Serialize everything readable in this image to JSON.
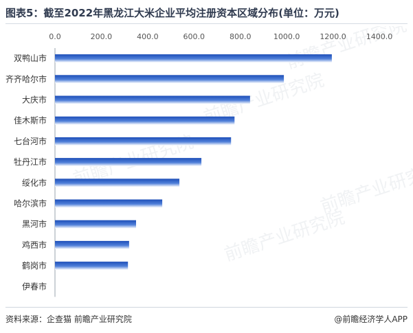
{
  "title": "图表5：截至2022年黑龙江大米企业平均注册资本区域分布(单位：万元)",
  "source": "资料来源：企查猫 前瞻产业研究院",
  "brand": "@前瞻经济学人APP",
  "watermark": "前瞻产业研究院",
  "colors": {
    "bar_dark": "#2a5bc4",
    "bar_light": "#ffffff",
    "title": "#2f3a4f"
  },
  "chart_data": {
    "type": "bar",
    "orientation": "horizontal",
    "title": "图表5：截至2022年黑龙江大米企业平均注册资本区域分布(单位：万元)",
    "xlabel": "",
    "ylabel": "",
    "xlim": [
      0,
      1400
    ],
    "x_ticks": [
      "0.0",
      "200.0",
      "400.0",
      "600.0",
      "800.0",
      "1000.0",
      "1200.0",
      "1400.0"
    ],
    "x_tick_values": [
      0,
      200,
      400,
      600,
      800,
      1000,
      1200,
      1400
    ],
    "axis_position": "top",
    "grid": false,
    "categories": [
      "双鸭山市",
      "齐齐哈尔市",
      "大庆市",
      "佳木斯市",
      "七台河市",
      "牡丹江市",
      "绥化市",
      "哈尔滨市",
      "黑河市",
      "鸡西市",
      "鹤岗市",
      "伊春市"
    ],
    "values": [
      1195,
      988,
      842,
      775,
      760,
      632,
      537,
      463,
      350,
      320,
      315,
      0
    ]
  }
}
